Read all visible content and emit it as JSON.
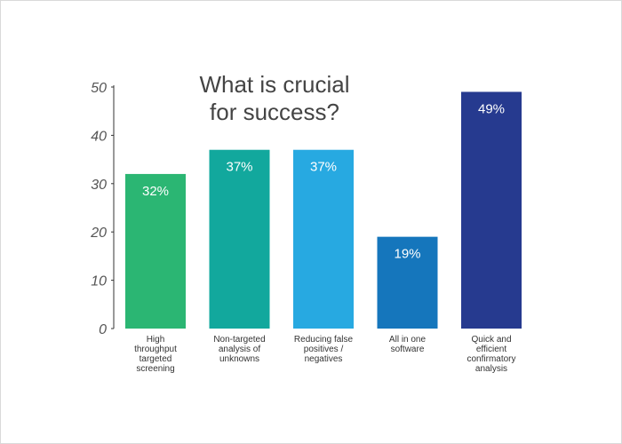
{
  "chart_data": {
    "type": "bar",
    "title_lines": [
      "What is crucial",
      "for success?"
    ],
    "categories": [
      [
        "High",
        "throughput",
        "targeted",
        "screening"
      ],
      [
        "Non-targeted",
        "analysis of",
        "unknowns"
      ],
      [
        "Reducing false",
        "positives /",
        "negatives"
      ],
      [
        "All in one",
        "software"
      ],
      [
        "Quick and",
        "efficient",
        "confirmatory",
        "analysis"
      ]
    ],
    "values": [
      32,
      37,
      37,
      19,
      49
    ],
    "value_labels": [
      "32%",
      "37%",
      "37%",
      "19%",
      "49%"
    ],
    "colors": [
      "#2bb673",
      "#12a89d",
      "#27a9e1",
      "#1576bc",
      "#263a8f"
    ],
    "ylim": [
      0,
      50
    ],
    "yticks": [
      0,
      10,
      20,
      30,
      40,
      50
    ],
    "grid": false,
    "legend": "none"
  }
}
